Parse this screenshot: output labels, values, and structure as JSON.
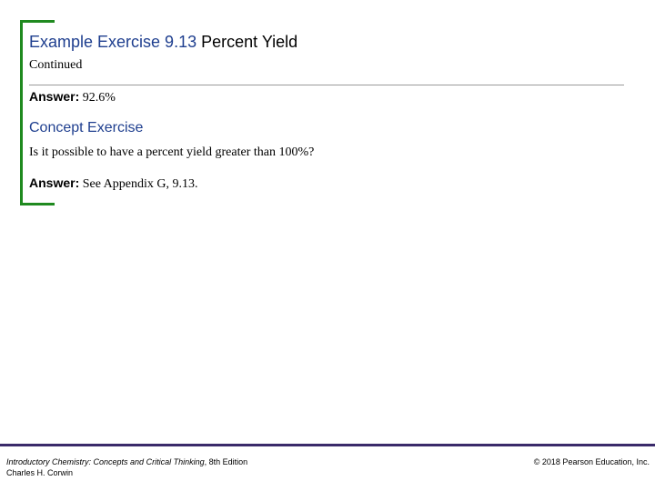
{
  "title": {
    "exercise": "Example Exercise 9.13",
    "topic": "Percent Yield"
  },
  "continued": "Continued",
  "answer1": {
    "label": "Answer:",
    "text": "92.6%"
  },
  "concept": {
    "title": "Concept Exercise",
    "question": "Is it possible to have a percent yield greater than 100%?",
    "answer_label": "Answer:",
    "answer_text": "See Appendix G, 9.13."
  },
  "footer": {
    "book_title": "Introductory Chemistry: Concepts and Critical Thinking",
    "edition": ", 8th Edition",
    "author": "Charles H. Corwin",
    "copyright": "© 2018 Pearson Education, Inc."
  },
  "colors": {
    "bracket": "#1f8a1f",
    "heading_blue": "#1f3f8f",
    "footer_rule": "#3a2a6a"
  }
}
